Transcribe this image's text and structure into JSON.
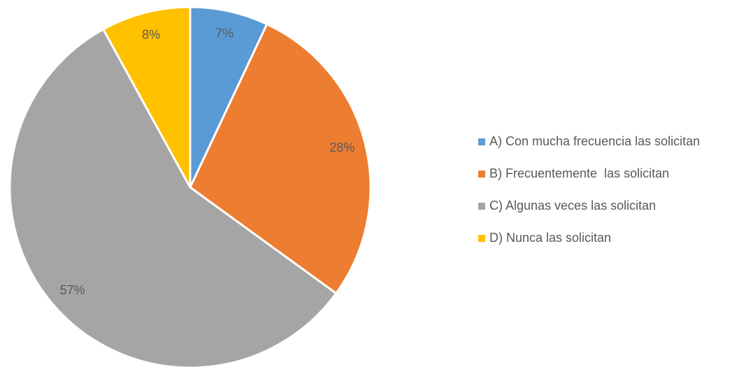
{
  "chart_data": {
    "type": "pie",
    "categories": [
      "A) Con mucha frecuencia las solicitan",
      "B) Frecuentemente  las solicitan",
      "C) Algunas veces las solicitan",
      "D) Nunca las solicitan"
    ],
    "values": [
      7,
      28,
      57,
      8
    ],
    "value_labels": [
      "7%",
      "28%",
      "57%",
      "8%"
    ],
    "colors": [
      "#5b9bd5",
      "#ed7d31",
      "#a5a5a5",
      "#ffc000"
    ],
    "legend": "right"
  }
}
